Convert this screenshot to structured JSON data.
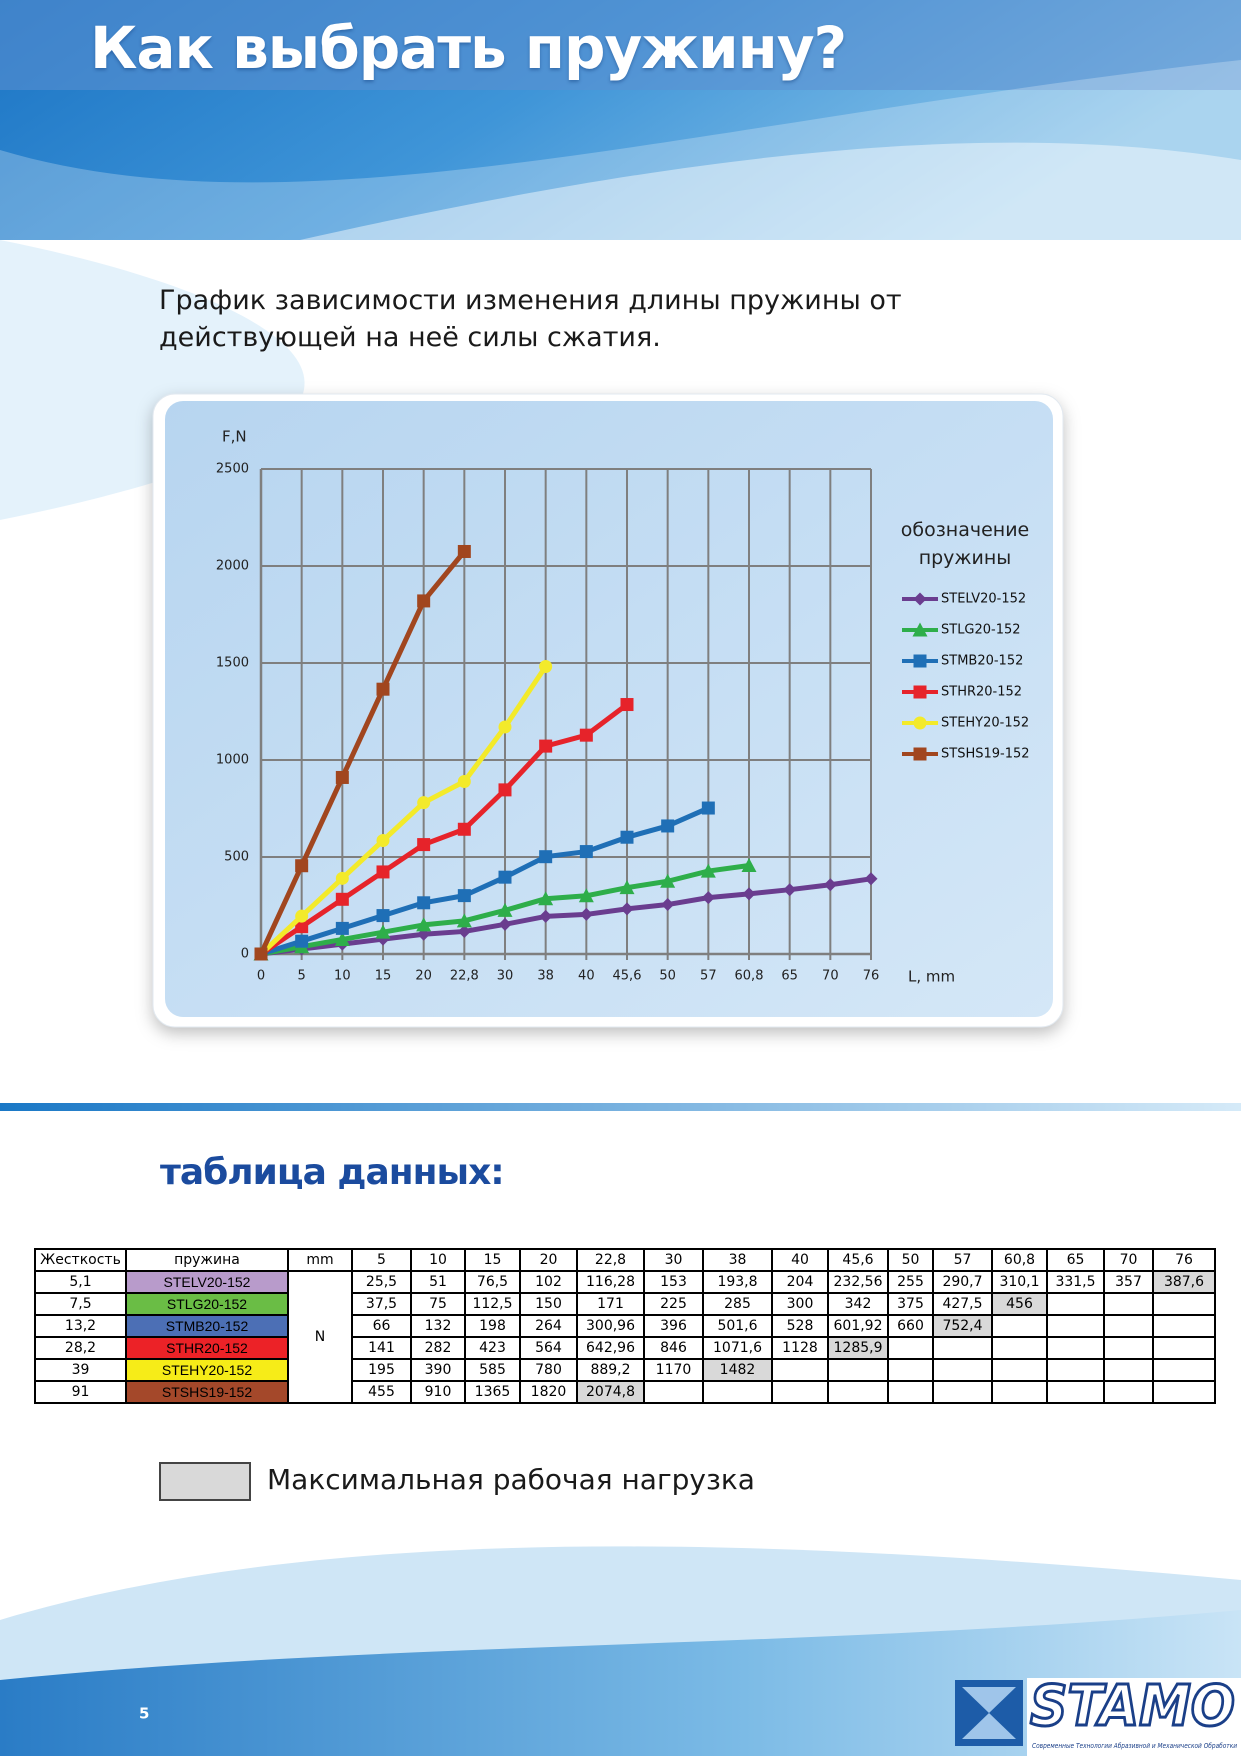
{
  "header": {
    "title": "Как выбрать пружину?"
  },
  "subtitle": "График зависимости изменения длины пружины от действующей на неё силы сжатия.",
  "chart_data": {
    "type": "line",
    "y_label": "F,N",
    "x_label": "L, mm",
    "legend_title": "обозначение пружины",
    "categories": [
      "0",
      "5",
      "10",
      "15",
      "20",
      "22,8",
      "30",
      "38",
      "40",
      "45,6",
      "50",
      "57",
      "60,8",
      "65",
      "70",
      "76"
    ],
    "ylim": [
      0,
      2500
    ],
    "yticks": [
      0,
      500,
      1000,
      1500,
      2000,
      2500
    ],
    "grid": true,
    "legend": "right",
    "series": [
      {
        "name": "STELV20-152",
        "color": "#6a3d8f",
        "marker": "diamond",
        "values": [
          0,
          25.5,
          51,
          76.5,
          102,
          116.28,
          153,
          193.8,
          204,
          232.56,
          255,
          290.7,
          310.1,
          331.5,
          357,
          387.6
        ]
      },
      {
        "name": "STLG20-152",
        "color": "#2eae4a",
        "marker": "triangle",
        "values": [
          0,
          37.5,
          75,
          112.5,
          150,
          171,
          225,
          285,
          300,
          342,
          375,
          427.5,
          456,
          null,
          null,
          null
        ]
      },
      {
        "name": "STMB20-152",
        "color": "#1f6fb6",
        "marker": "square",
        "values": [
          0,
          66,
          132,
          198,
          264,
          300.96,
          396,
          501.6,
          528,
          601.92,
          660,
          752.4,
          null,
          null,
          null,
          null
        ]
      },
      {
        "name": "STHR20-152",
        "color": "#e6232a",
        "marker": "square",
        "values": [
          0,
          141,
          282,
          423,
          564,
          642.96,
          846,
          1071.6,
          1128,
          1285.9,
          null,
          null,
          null,
          null,
          null,
          null
        ]
      },
      {
        "name": "STEHY20-152",
        "color": "#f3ea2a",
        "marker": "circle",
        "values": [
          0,
          195,
          390,
          585,
          780,
          889.2,
          1170,
          1482,
          null,
          null,
          null,
          null,
          null,
          null,
          null,
          null
        ]
      },
      {
        "name": "STSHS19-152",
        "color": "#a1461f",
        "marker": "square",
        "values": [
          0,
          455,
          910,
          1365,
          1820,
          2074.8,
          null,
          null,
          null,
          null,
          null,
          null,
          null,
          null,
          null,
          null
        ]
      }
    ]
  },
  "table_title": "таблица данных:",
  "table": {
    "header": [
      "Жесткость",
      "пружина",
      "mm",
      "5",
      "10",
      "15",
      "20",
      "22,8",
      "30",
      "38",
      "40",
      "45,6",
      "50",
      "57",
      "60,8",
      "65",
      "70",
      "76"
    ],
    "unit": "N",
    "rows": [
      {
        "stiffness": "5,1",
        "name": "STELV20-152",
        "color": "#b89bcb",
        "values": [
          "25,5",
          "51",
          "76,5",
          "102",
          "116,28",
          "153",
          "193,8",
          "204",
          "232,56",
          "255",
          "290,7",
          "310,1",
          "331,5",
          "357",
          "387,6"
        ]
      },
      {
        "stiffness": "7,5",
        "name": "STLG20-152",
        "color": "#6abd45",
        "values": [
          "37,5",
          "75",
          "112,5",
          "150",
          "171",
          "225",
          "285",
          "300",
          "342",
          "375",
          "427,5",
          "456"
        ]
      },
      {
        "stiffness": "13,2",
        "name": "STMB20-152",
        "color": "#4c6fb5",
        "values": [
          "66",
          "132",
          "198",
          "264",
          "300,96",
          "396",
          "501,6",
          "528",
          "601,92",
          "660",
          "752,4"
        ]
      },
      {
        "stiffness": "28,2",
        "name": "STHR20-152",
        "color": "#ec2227",
        "values": [
          "141",
          "282",
          "423",
          "564",
          "642,96",
          "846",
          "1071,6",
          "1128",
          "1285,9"
        ]
      },
      {
        "stiffness": "39",
        "name": "STEHY20-152",
        "color": "#f6ec18",
        "values": [
          "195",
          "390",
          "585",
          "780",
          "889,2",
          "1170",
          "1482"
        ]
      },
      {
        "stiffness": "91",
        "name": "STSHS19-152",
        "color": "#a4482a",
        "values": [
          "455",
          "910",
          "1365",
          "1820",
          "2074,8"
        ]
      }
    ]
  },
  "max_load_legend": "Максимальная рабочая нагрузка",
  "footer": {
    "page_number": "5",
    "logo": "STAMO",
    "tagline": "Современные Технологии Абразивной и Механической Обработки"
  }
}
